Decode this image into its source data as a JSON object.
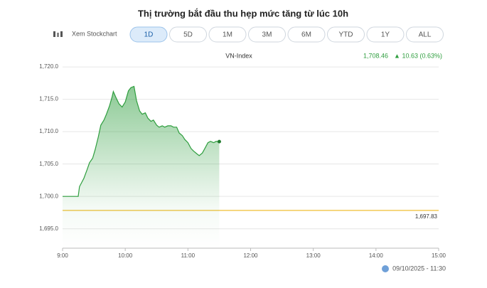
{
  "chart_data": {
    "type": "line",
    "title": "Thị trường bắt đầu thu hẹp mức tăng từ lúc 10h",
    "stockchart_link": "Xem Stockchart",
    "ranges": [
      "1D",
      "5D",
      "1M",
      "3M",
      "6M",
      "YTD",
      "1Y",
      "ALL"
    ],
    "last_price": "1,708.46",
    "change": "▲ 10.63 (0.63%)",
    "timestamp": "09/10/2025 - 11:30",
    "series": [
      {
        "name": "VN-Index",
        "color": "#2e9e3e",
        "x": [
          9.0,
          9.25,
          9.27,
          9.34,
          9.39,
          9.43,
          9.48,
          9.52,
          9.57,
          9.61,
          9.66,
          9.7,
          9.75,
          9.79,
          9.81,
          9.86,
          9.9,
          9.95,
          10.0,
          10.05,
          10.09,
          10.14,
          10.18,
          10.23,
          10.27,
          10.32,
          10.36,
          10.41,
          10.45,
          10.5,
          10.54,
          10.59,
          10.63,
          10.68,
          10.73,
          10.77,
          10.82,
          10.86,
          10.91,
          10.95,
          11.0,
          11.05,
          11.09,
          11.14,
          11.18,
          11.23,
          11.27,
          11.32,
          11.36,
          11.41,
          11.45,
          11.5
        ],
        "values": [
          1700.0,
          1700.0,
          1701.5,
          1702.8,
          1704.1,
          1705.2,
          1705.9,
          1707.2,
          1709.2,
          1711.0,
          1711.8,
          1712.7,
          1714.0,
          1715.4,
          1716.2,
          1715.1,
          1714.3,
          1713.8,
          1714.6,
          1716.3,
          1716.8,
          1717.0,
          1714.8,
          1713.2,
          1712.7,
          1712.9,
          1712.1,
          1711.6,
          1711.8,
          1711.0,
          1710.7,
          1710.9,
          1710.7,
          1710.9,
          1710.9,
          1710.7,
          1710.7,
          1709.8,
          1709.4,
          1708.8,
          1708.3,
          1707.4,
          1707.0,
          1706.6,
          1706.3,
          1706.7,
          1707.4,
          1708.3,
          1708.5,
          1708.3,
          1708.5,
          1708.46
        ]
      }
    ],
    "reference_line": {
      "value": 1697.83,
      "label": "1,697.83",
      "color": "#f2c955"
    },
    "xlim": [
      9,
      15
    ],
    "xticks": [
      {
        "value": 9,
        "label": "9:00"
      },
      {
        "value": 10,
        "label": "10:00"
      },
      {
        "value": 11,
        "label": "11:00"
      },
      {
        "value": 12,
        "label": "12:00"
      },
      {
        "value": 13,
        "label": "13:00"
      },
      {
        "value": 14,
        "label": "14:00"
      },
      {
        "value": 15,
        "label": "15:00"
      }
    ],
    "ylim": [
      1692,
      1721
    ],
    "yticks": [
      {
        "value": 1695,
        "label": "1,695.0"
      },
      {
        "value": 1700,
        "label": "1,700.0"
      },
      {
        "value": 1705,
        "label": "1,705.0"
      },
      {
        "value": 1710,
        "label": "1,710.0"
      },
      {
        "value": 1715,
        "label": "1,715.0"
      },
      {
        "value": 1720,
        "label": "1,720.0"
      }
    ],
    "grid": true
  }
}
